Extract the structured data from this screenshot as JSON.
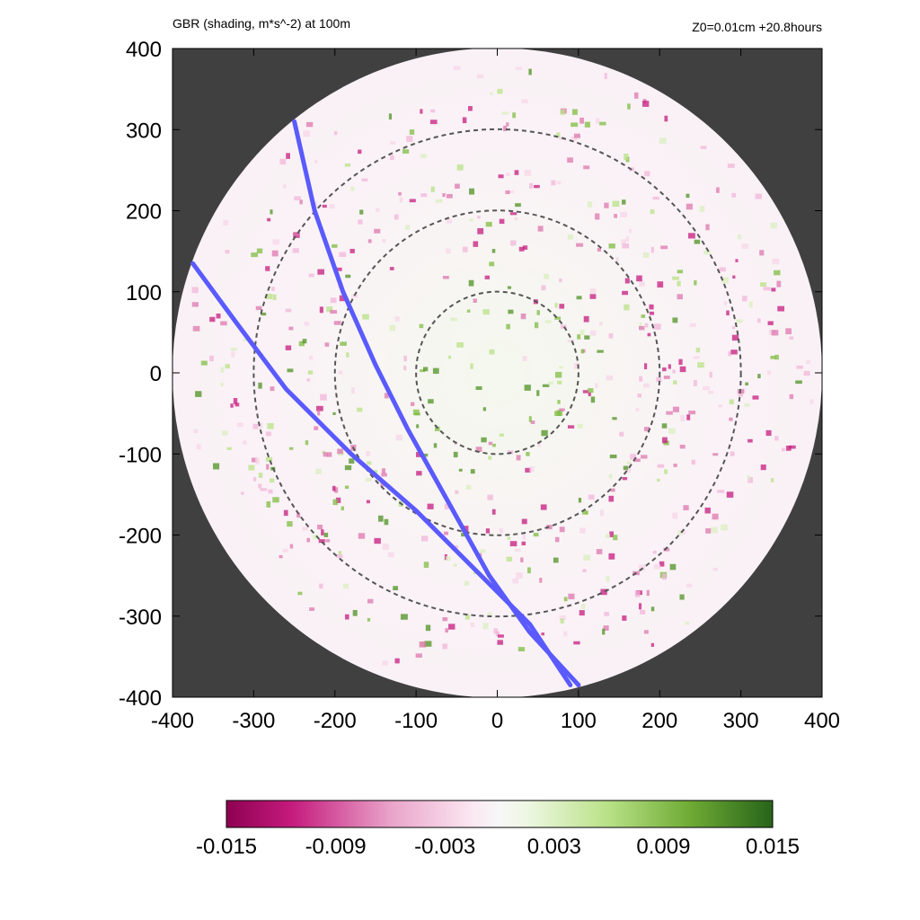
{
  "header": {
    "title_left": "GBR (shading, m*s^-2) at 100m",
    "title_right": "Z0=0.01cm  +20.8hours"
  },
  "chart_data": {
    "type": "heatmap",
    "title": "GBR (shading, m*s^-2) at 100m",
    "annotation": "Z0=0.01cm  +20.8hours",
    "xlim": [
      -400,
      400
    ],
    "ylim": [
      -400,
      400
    ],
    "x_ticks": [
      -400,
      -300,
      -200,
      -100,
      0,
      100,
      200,
      300,
      400
    ],
    "y_ticks": [
      -400,
      -300,
      -200,
      -100,
      0,
      100,
      200,
      300,
      400
    ],
    "domain_radius": 400,
    "dashed_circle_radii": [
      100,
      200,
      300
    ],
    "colorbar": {
      "min": -0.015,
      "max": 0.015,
      "tick_labels": [
        "-0.015",
        "-0.009",
        "-0.003",
        "0.003",
        "0.009",
        "0.015"
      ],
      "colors_negative": "#8e0152",
      "colors_positive": "#276419"
    },
    "track_lines": [
      {
        "color": "#5a5aff",
        "points": [
          [
            -250,
            310
          ],
          [
            -225,
            200
          ],
          [
            -190,
            100
          ],
          [
            -150,
            10
          ],
          [
            -110,
            -70
          ],
          [
            -60,
            -160
          ],
          [
            -10,
            -250
          ],
          [
            40,
            -320
          ],
          [
            100,
            -385
          ]
        ]
      },
      {
        "color": "#5a5aff",
        "points": [
          [
            -375,
            135
          ],
          [
            -320,
            60
          ],
          [
            -260,
            -20
          ],
          [
            -180,
            -100
          ],
          [
            -100,
            -170
          ],
          [
            -20,
            -250
          ],
          [
            40,
            -310
          ],
          [
            90,
            -385
          ]
        ]
      }
    ],
    "background_color": "#404040"
  }
}
